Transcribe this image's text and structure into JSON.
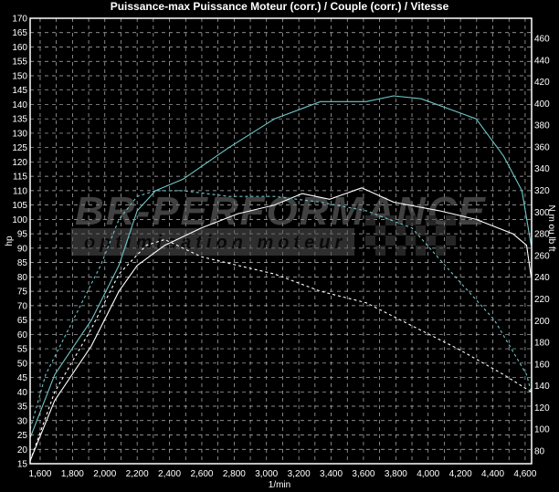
{
  "chart_data": {
    "type": "line",
    "title": "Puissance-max Puissance Moteur (corr.) / Couple (corr.) / Vitesse",
    "xlabel": "1/min",
    "ylabel": "hp",
    "y2label": "N m ou lb ft",
    "xlim": [
      1538,
      4640
    ],
    "ylim": [
      15,
      170
    ],
    "y2lim": [
      80,
      460
    ],
    "xticks": [
      "1,600",
      "1,800",
      "2,000",
      "2,200",
      "2,400",
      "2,600",
      "2,800",
      "3,000",
      "3,200",
      "3,400",
      "3,600",
      "3,800",
      "4,000",
      "4,200",
      "4,400",
      "4,600"
    ],
    "xtick_values": [
      1600,
      1800,
      2000,
      2200,
      2400,
      2600,
      2800,
      3000,
      3200,
      3400,
      3600,
      3800,
      4000,
      4200,
      4400,
      4600
    ],
    "yticks": [
      15,
      20,
      25,
      30,
      35,
      40,
      45,
      50,
      55,
      60,
      65,
      70,
      75,
      80,
      85,
      90,
      95,
      100,
      105,
      110,
      115,
      120,
      125,
      130,
      135,
      140,
      145,
      150,
      155,
      160,
      165,
      170
    ],
    "y2ticks": [
      80,
      100,
      120,
      140,
      160,
      180,
      200,
      220,
      240,
      260,
      280,
      300,
      320,
      340,
      360,
      380,
      400,
      420,
      440,
      460
    ],
    "grid": true,
    "series_units_note_axis": "left",
    "series": [
      {
        "color": "#6fc8c8",
        "style": "solid",
        "x": [
          1538,
          1690,
          1917,
          2087,
          2200,
          2314,
          2484,
          2767,
          3050,
          3334,
          3617,
          3787,
          3957,
          4297,
          4467,
          4580,
          4637
        ],
        "y": [
          24,
          46,
          65,
          84,
          103,
          110,
          114,
          125,
          135,
          141,
          141,
          143,
          142,
          135,
          122,
          110,
          91
        ]
      },
      {
        "color": "#ffffff",
        "style": "solid",
        "x": [
          1538,
          1690,
          1917,
          2087,
          2200,
          2371,
          2597,
          2824,
          3050,
          3220,
          3390,
          3589,
          3787,
          4070,
          4297,
          4524,
          4609,
          4637
        ],
        "y": [
          16,
          37,
          56,
          75,
          84,
          91,
          97,
          102,
          105,
          109,
          107,
          111,
          106,
          103,
          100,
          95,
          91,
          80
        ]
      },
      {
        "color": "#6fc8c8",
        "style": "dashed",
        "x": [
          1538,
          1634,
          1804,
          1974,
          2087,
          2200,
          2314,
          2484,
          2767,
          3050,
          3334,
          3617,
          3900,
          4184,
          4410,
          4609,
          4637
        ],
        "y": [
          27,
          46,
          65,
          84,
          100,
          108,
          110,
          110,
          108,
          108,
          106,
          103,
          97,
          79,
          65,
          46,
          40
        ]
      },
      {
        "color": "#ffffff",
        "style": "dashed",
        "x": [
          1538,
          1690,
          1917,
          2087,
          2257,
          2371,
          2597,
          2824,
          3050,
          3334,
          3617,
          3900,
          4184,
          4467,
          4637
        ],
        "y": [
          16,
          40,
          62,
          81,
          91,
          93,
          87,
          84,
          81,
          75,
          71,
          63,
          55,
          46,
          40
        ]
      }
    ]
  },
  "watermark": {
    "brand": "BR-PERFORMANCE",
    "tagline": "optimisation moteur"
  }
}
